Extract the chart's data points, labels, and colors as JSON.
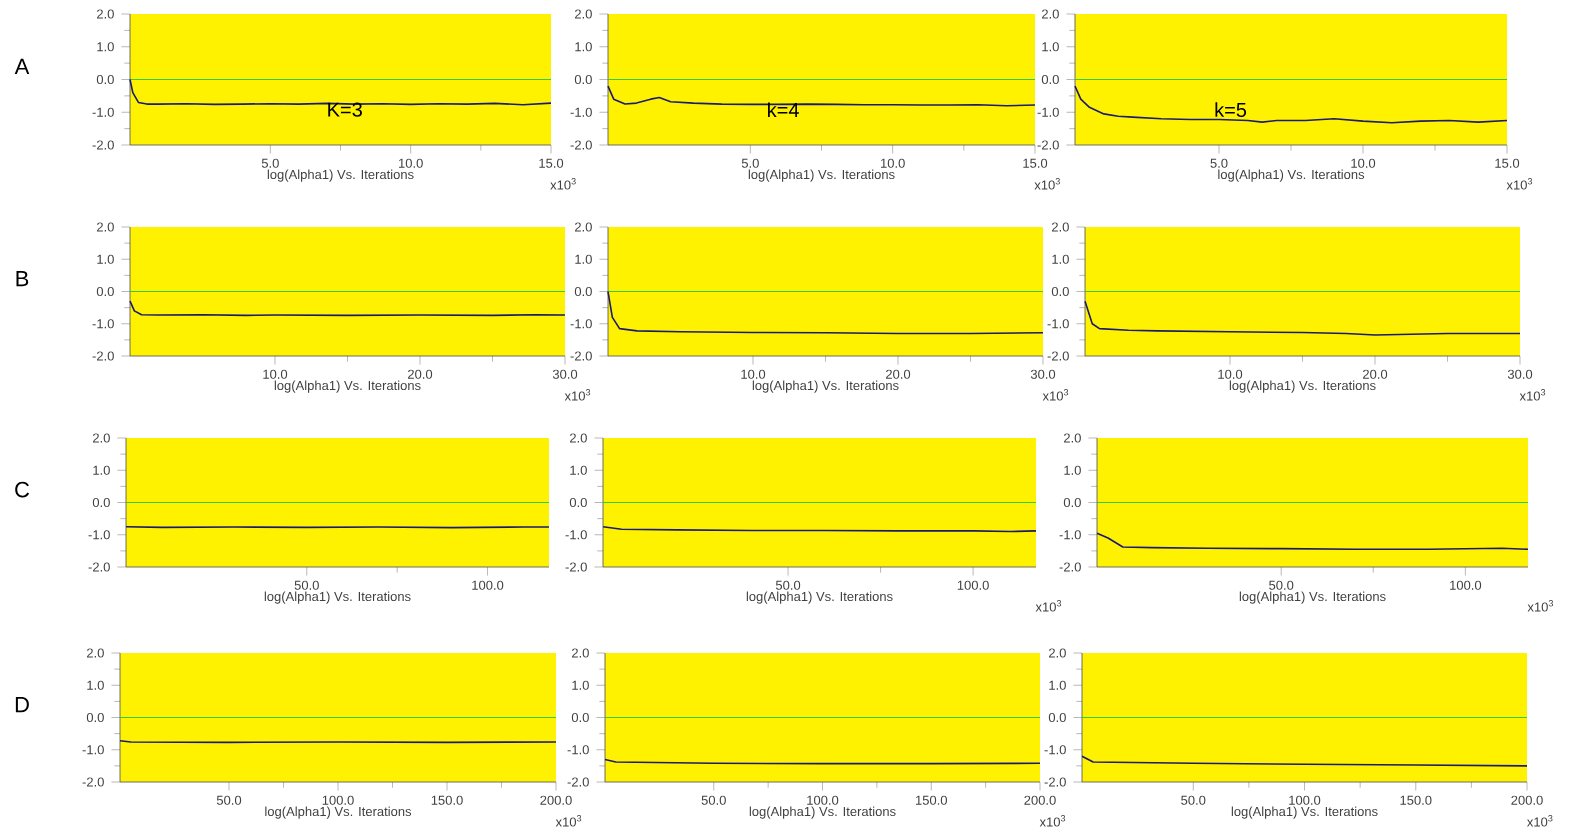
{
  "chart_data": [
    {
      "type": "line",
      "title": "A",
      "xlabel": "log(Alpha1) Vs. Iterations",
      "xlim": [
        0,
        15
      ],
      "xticks": [
        {
          "value": 5,
          "label": "5.0"
        },
        {
          "value": 10,
          "label": "10.0"
        },
        {
          "value": 15,
          "label": "15.0"
        }
      ],
      "ylim": [
        -2,
        2
      ],
      "yticks": [
        {
          "value": -2,
          "label": "-2.0"
        },
        {
          "value": -1,
          "label": "-1.0"
        },
        {
          "value": 0,
          "label": "0.0"
        },
        {
          "value": 1,
          "label": "1.0"
        },
        {
          "value": 2,
          "label": "2.0"
        }
      ],
      "ref_lines": [
        {
          "axis": "y",
          "value": 0,
          "color": "#33cc33"
        }
      ],
      "annotations": [
        "x10$^{3}$",
        "K=3"
      ],
      "series": [
        {
          "color": "#1a1a6e",
          "x": [
            0,
            0.1,
            0.3,
            0.6,
            1,
            2,
            3,
            4,
            5,
            6,
            7,
            8,
            9,
            10,
            11,
            12,
            13,
            14,
            15
          ],
          "values": [
            0.0,
            -0.4,
            -0.7,
            -0.75,
            -0.75,
            -0.74,
            -0.76,
            -0.75,
            -0.74,
            -0.75,
            -0.73,
            -0.75,
            -0.74,
            -0.76,
            -0.74,
            -0.75,
            -0.73,
            -0.77,
            -0.72
          ]
        }
      ]
    },
    {
      "type": "line",
      "xlabel": "log(Alpha1) Vs. Iterations",
      "xlim": [
        0,
        15
      ],
      "xticks": [
        {
          "value": 5,
          "label": "5.0"
        },
        {
          "value": 10,
          "label": "10.0"
        },
        {
          "value": 15,
          "label": "15.0"
        }
      ],
      "ylim": [
        -2,
        2
      ],
      "yticks": [
        {
          "value": -2,
          "label": "-2.0"
        },
        {
          "value": -1,
          "label": "-1.0"
        },
        {
          "value": 0,
          "label": "0.0"
        },
        {
          "value": 1,
          "label": "1.0"
        },
        {
          "value": 2,
          "label": "2.0"
        }
      ],
      "ref_lines": [
        {
          "axis": "y",
          "value": 0,
          "color": "#33cc33"
        }
      ],
      "annotations": [
        "x10$^{3}$",
        "k=4"
      ],
      "series": [
        {
          "color": "#1a1a6e",
          "x": [
            0,
            0.2,
            0.6,
            1,
            1.5,
            1.8,
            2.2,
            3,
            4,
            5,
            6,
            7,
            8,
            9,
            10,
            11,
            12,
            13,
            14,
            15
          ],
          "values": [
            -0.2,
            -0.6,
            -0.75,
            -0.72,
            -0.6,
            -0.55,
            -0.68,
            -0.72,
            -0.75,
            -0.76,
            -0.76,
            -0.75,
            -0.76,
            -0.77,
            -0.77,
            -0.78,
            -0.78,
            -0.77,
            -0.8,
            -0.78
          ]
        }
      ]
    },
    {
      "type": "line",
      "xlabel": "log(Alpha1) Vs. Iterations",
      "xlim": [
        0,
        15
      ],
      "xticks": [
        {
          "value": 5,
          "label": "5.0"
        },
        {
          "value": 10,
          "label": "10.0"
        },
        {
          "value": 15,
          "label": "15.0"
        }
      ],
      "ylim": [
        -2,
        2
      ],
      "yticks": [
        {
          "value": -2,
          "label": "-2.0"
        },
        {
          "value": -1,
          "label": "-1.0"
        },
        {
          "value": 0,
          "label": "0.0"
        },
        {
          "value": 1,
          "label": "1.0"
        },
        {
          "value": 2,
          "label": "2.0"
        }
      ],
      "ref_lines": [
        {
          "axis": "y",
          "value": 0,
          "color": "#33cc33"
        }
      ],
      "annotations": [
        "x10$^{3}$",
        "k=5"
      ],
      "series": [
        {
          "color": "#1a1a6e",
          "x": [
            0,
            0.2,
            0.5,
            1,
            1.5,
            2,
            3,
            4,
            5,
            6,
            6.5,
            7,
            8,
            9,
            10,
            11,
            12,
            13,
            14,
            15
          ],
          "values": [
            -0.2,
            -0.6,
            -0.85,
            -1.05,
            -1.12,
            -1.15,
            -1.2,
            -1.22,
            -1.22,
            -1.25,
            -1.3,
            -1.25,
            -1.25,
            -1.2,
            -1.27,
            -1.32,
            -1.27,
            -1.25,
            -1.3,
            -1.25
          ]
        }
      ]
    },
    {
      "type": "line",
      "title": "B",
      "xlabel": "log(Alpha1) Vs. Iterations",
      "xlim": [
        0,
        30
      ],
      "xticks": [
        {
          "value": 10,
          "label": "10.0"
        },
        {
          "value": 20,
          "label": "20.0"
        },
        {
          "value": 30,
          "label": "30.0"
        }
      ],
      "ylim": [
        -2,
        2
      ],
      "yticks": [
        {
          "value": -2,
          "label": "-2.0"
        },
        {
          "value": -1,
          "label": "-1.0"
        },
        {
          "value": 0,
          "label": "0.0"
        },
        {
          "value": 1,
          "label": "1.0"
        },
        {
          "value": 2,
          "label": "2.0"
        }
      ],
      "ref_lines": [
        {
          "axis": "y",
          "value": 0,
          "color": "#33cc33"
        }
      ],
      "annotations": [
        "x10$^{3}$"
      ],
      "series": [
        {
          "color": "#1a1a6e",
          "x": [
            0,
            0.3,
            0.8,
            2,
            5,
            8,
            10,
            15,
            20,
            25,
            28,
            30
          ],
          "values": [
            -0.3,
            -0.6,
            -0.72,
            -0.73,
            -0.72,
            -0.74,
            -0.73,
            -0.74,
            -0.73,
            -0.74,
            -0.72,
            -0.73
          ]
        }
      ]
    },
    {
      "type": "line",
      "xlabel": "log(Alpha1) Vs. Iterations",
      "xlim": [
        0,
        30
      ],
      "xticks": [
        {
          "value": 10,
          "label": "10.0"
        },
        {
          "value": 20,
          "label": "20.0"
        },
        {
          "value": 30,
          "label": "30.0"
        }
      ],
      "ylim": [
        -2,
        2
      ],
      "yticks": [
        {
          "value": -2,
          "label": "-2.0"
        },
        {
          "value": -1,
          "label": "-1.0"
        },
        {
          "value": 0,
          "label": "0.0"
        },
        {
          "value": 1,
          "label": "1.0"
        },
        {
          "value": 2,
          "label": "2.0"
        }
      ],
      "ref_lines": [
        {
          "axis": "y",
          "value": 0,
          "color": "#33cc33"
        }
      ],
      "annotations": [
        "x10$^{3}$"
      ],
      "series": [
        {
          "color": "#1a1a6e",
          "x": [
            0,
            0.3,
            0.8,
            2,
            5,
            10,
            15,
            20,
            25,
            30
          ],
          "values": [
            0.0,
            -0.8,
            -1.15,
            -1.22,
            -1.25,
            -1.27,
            -1.28,
            -1.3,
            -1.3,
            -1.28
          ]
        }
      ]
    },
    {
      "type": "line",
      "xlabel": "log(Alpha1) Vs. Iterations",
      "xlim": [
        0,
        30
      ],
      "xticks": [
        {
          "value": 10,
          "label": "10.0"
        },
        {
          "value": 20,
          "label": "20.0"
        },
        {
          "value": 30,
          "label": "30.0"
        }
      ],
      "ylim": [
        -2,
        2
      ],
      "yticks": [
        {
          "value": -2,
          "label": "-2.0"
        },
        {
          "value": -1,
          "label": "-1.0"
        },
        {
          "value": 0,
          "label": "0.0"
        },
        {
          "value": 1,
          "label": "1.0"
        },
        {
          "value": 2,
          "label": "2.0"
        }
      ],
      "ref_lines": [
        {
          "axis": "y",
          "value": 0,
          "color": "#33cc33"
        }
      ],
      "annotations": [
        "x10$^{3}$"
      ],
      "series": [
        {
          "color": "#1a1a6e",
          "x": [
            0,
            0.5,
            1,
            3,
            5,
            10,
            15,
            18,
            20,
            25,
            30
          ],
          "values": [
            -0.3,
            -1.0,
            -1.15,
            -1.2,
            -1.22,
            -1.25,
            -1.27,
            -1.3,
            -1.35,
            -1.3,
            -1.3
          ]
        }
      ]
    },
    {
      "type": "line",
      "title": "C",
      "xlabel": "log(Alpha1) Vs. Iterations",
      "xlim": [
        0,
        117
      ],
      "xticks": [
        {
          "value": 50,
          "label": "50.0"
        },
        {
          "value": 100,
          "label": "100.0"
        }
      ],
      "ylim": [
        -2,
        2
      ],
      "yticks": [
        {
          "value": -2,
          "label": "-2.0"
        },
        {
          "value": -1,
          "label": "-1.0"
        },
        {
          "value": 0,
          "label": "0.0"
        },
        {
          "value": 1,
          "label": "1.0"
        },
        {
          "value": 2,
          "label": "2.0"
        }
      ],
      "ref_lines": [
        {
          "axis": "y",
          "value": 0,
          "color": "#33cc33"
        }
      ],
      "series": [
        {
          "color": "#1a1a6e",
          "x": [
            0,
            10,
            30,
            50,
            70,
            90,
            110,
            117
          ],
          "values": [
            -0.75,
            -0.77,
            -0.76,
            -0.77,
            -0.76,
            -0.78,
            -0.76,
            -0.76
          ]
        }
      ]
    },
    {
      "type": "line",
      "xlabel": "log(Alpha1) Vs. Iterations",
      "xlim": [
        0,
        117
      ],
      "xticks": [
        {
          "value": 50,
          "label": "50.0"
        },
        {
          "value": 100,
          "label": "100.0"
        }
      ],
      "ylim": [
        -2,
        2
      ],
      "yticks": [
        {
          "value": -2,
          "label": "-2.0"
        },
        {
          "value": -1,
          "label": "-1.0"
        },
        {
          "value": 0,
          "label": "0.0"
        },
        {
          "value": 1,
          "label": "1.0"
        },
        {
          "value": 2,
          "label": "2.0"
        }
      ],
      "ref_lines": [
        {
          "axis": "y",
          "value": 0,
          "color": "#33cc33"
        }
      ],
      "annotations": [
        "x10$^{3}$"
      ],
      "series": [
        {
          "color": "#1a1a6e",
          "x": [
            0,
            5,
            20,
            40,
            60,
            80,
            100,
            110,
            117
          ],
          "values": [
            -0.75,
            -0.83,
            -0.85,
            -0.87,
            -0.87,
            -0.88,
            -0.88,
            -0.9,
            -0.88
          ]
        }
      ]
    },
    {
      "type": "line",
      "xlabel": "log(Alpha1) Vs. Iterations",
      "xlim": [
        0,
        117
      ],
      "xticks": [
        {
          "value": 50,
          "label": "50.0"
        },
        {
          "value": 100,
          "label": "100.0"
        }
      ],
      "ylim": [
        -2,
        2
      ],
      "yticks": [
        {
          "value": -2,
          "label": "-2.0"
        },
        {
          "value": -1,
          "label": "-1.0"
        },
        {
          "value": 0,
          "label": "0.0"
        },
        {
          "value": 1,
          "label": "1.0"
        },
        {
          "value": 2,
          "label": "2.0"
        }
      ],
      "ref_lines": [
        {
          "axis": "y",
          "value": 0,
          "color": "#33cc33"
        }
      ],
      "annotations": [
        "x10$^{3}$"
      ],
      "series": [
        {
          "color": "#1a1a6e",
          "x": [
            0,
            3,
            7,
            15,
            30,
            50,
            70,
            90,
            110,
            117
          ],
          "values": [
            -0.95,
            -1.1,
            -1.38,
            -1.4,
            -1.42,
            -1.43,
            -1.45,
            -1.45,
            -1.42,
            -1.45
          ]
        }
      ]
    },
    {
      "type": "line",
      "title": "D",
      "xlabel": "log(Alpha1) Vs. Iterations",
      "xlim": [
        0,
        200
      ],
      "xticks": [
        {
          "value": 50,
          "label": "50.0"
        },
        {
          "value": 100,
          "label": "100.0"
        },
        {
          "value": 150,
          "label": "150.0"
        },
        {
          "value": 200,
          "label": "200.0"
        }
      ],
      "ylim": [
        -2,
        2
      ],
      "yticks": [
        {
          "value": -2,
          "label": "-2.0"
        },
        {
          "value": -1,
          "label": "-1.0"
        },
        {
          "value": 0,
          "label": "0.0"
        },
        {
          "value": 1,
          "label": "1.0"
        },
        {
          "value": 2,
          "label": "2.0"
        }
      ],
      "ref_lines": [
        {
          "axis": "y",
          "value": 0,
          "color": "#33cc33"
        }
      ],
      "annotations": [
        "x10$^{3}$"
      ],
      "series": [
        {
          "color": "#1a1a6e",
          "x": [
            0,
            5,
            50,
            100,
            150,
            200
          ],
          "values": [
            -0.72,
            -0.76,
            -0.77,
            -0.76,
            -0.77,
            -0.76
          ]
        }
      ]
    },
    {
      "type": "line",
      "xlabel": "log(Alpha1) Vs. Iterations",
      "xlim": [
        0,
        200
      ],
      "xticks": [
        {
          "value": 50,
          "label": "50.0"
        },
        {
          "value": 100,
          "label": "100.0"
        },
        {
          "value": 150,
          "label": "150.0"
        },
        {
          "value": 200,
          "label": "200.0"
        }
      ],
      "ylim": [
        -2,
        2
      ],
      "yticks": [
        {
          "value": -2,
          "label": "-2.0"
        },
        {
          "value": -1,
          "label": "-1.0"
        },
        {
          "value": 0,
          "label": "0.0"
        },
        {
          "value": 1,
          "label": "1.0"
        },
        {
          "value": 2,
          "label": "2.0"
        }
      ],
      "ref_lines": [
        {
          "axis": "y",
          "value": 0,
          "color": "#33cc33"
        }
      ],
      "annotations": [
        "x10$^{3}$"
      ],
      "series": [
        {
          "color": "#1a1a6e",
          "x": [
            0,
            5,
            50,
            100,
            150,
            200
          ],
          "values": [
            -1.3,
            -1.38,
            -1.42,
            -1.43,
            -1.43,
            -1.42
          ]
        }
      ]
    },
    {
      "type": "line",
      "xlabel": "log(Alpha1) Vs. Iterations",
      "xlim": [
        0,
        200
      ],
      "xticks": [
        {
          "value": 50,
          "label": "50.0"
        },
        {
          "value": 100,
          "label": "100.0"
        },
        {
          "value": 150,
          "label": "150.0"
        },
        {
          "value": 200,
          "label": "200.0"
        }
      ],
      "ylim": [
        -2,
        2
      ],
      "yticks": [
        {
          "value": -2,
          "label": "-2.0"
        },
        {
          "value": -1,
          "label": "-1.0"
        },
        {
          "value": 0,
          "label": "0.0"
        },
        {
          "value": 1,
          "label": "1.0"
        },
        {
          "value": 2,
          "label": "2.0"
        }
      ],
      "ref_lines": [
        {
          "axis": "y",
          "value": 0,
          "color": "#33cc33"
        }
      ],
      "annotations": [
        "x10$^{3}$"
      ],
      "series": [
        {
          "color": "#1a1a6e",
          "x": [
            0,
            5,
            50,
            100,
            150,
            200
          ],
          "values": [
            -1.2,
            -1.38,
            -1.42,
            -1.45,
            -1.47,
            -1.5
          ]
        }
      ]
    }
  ]
}
